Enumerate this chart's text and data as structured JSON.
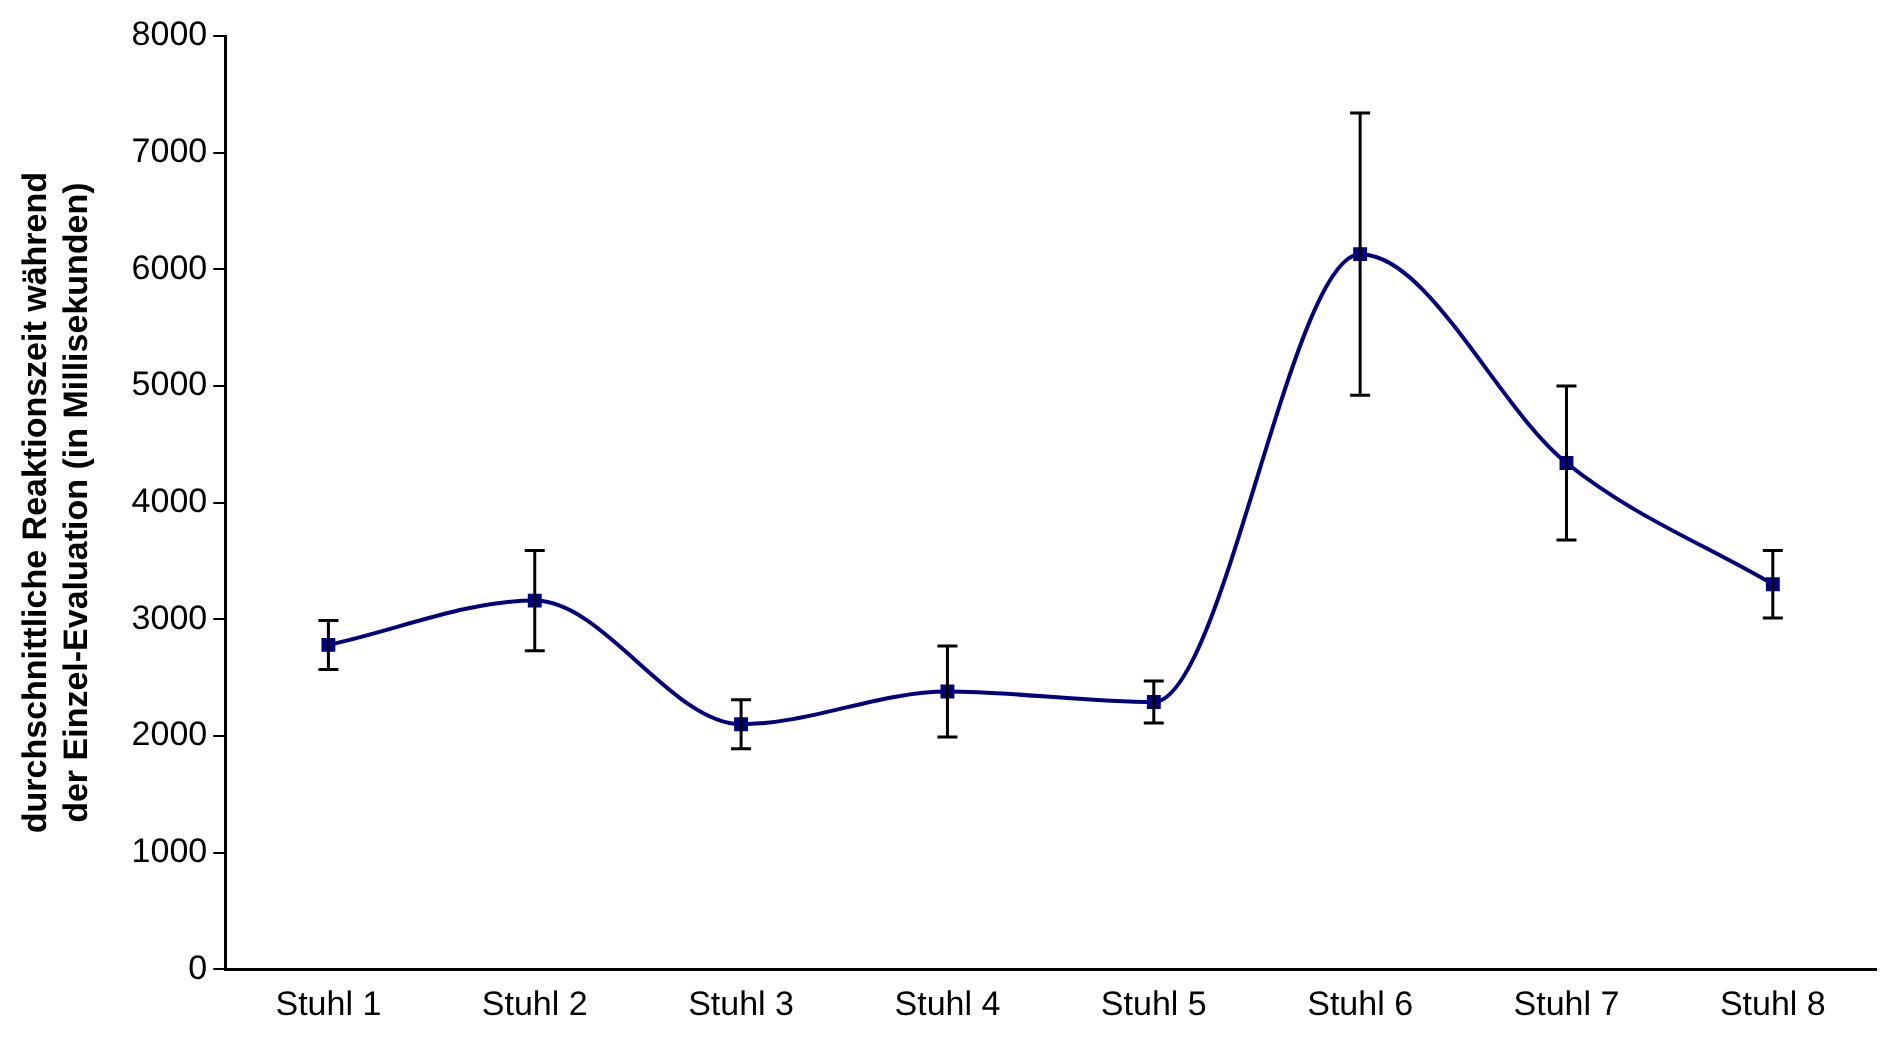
{
  "chart_data": {
    "type": "line",
    "ylabel": "durchschnittliche Reaktionszeit während\nder Einzel-Evaluation (in Millisekunden)",
    "categories": [
      "Stuhl 1",
      "Stuhl 2",
      "Stuhl 3",
      "Stuhl 4",
      "Stuhl 5",
      "Stuhl 6",
      "Stuhl 7",
      "Stuhl 8"
    ],
    "values": [
      2780,
      3160,
      2100,
      2380,
      2290,
      6130,
      4340,
      3300
    ],
    "errors": [
      210,
      430,
      210,
      390,
      180,
      1210,
      660,
      290
    ],
    "color": "#000080",
    "marker": "square",
    "line_style": "solid",
    "grid": false,
    "legend": false,
    "ylim": [
      0,
      8000
    ],
    "yticks": [
      0,
      1000,
      2000,
      3000,
      4000,
      5000,
      6000,
      7000,
      8000
    ]
  }
}
